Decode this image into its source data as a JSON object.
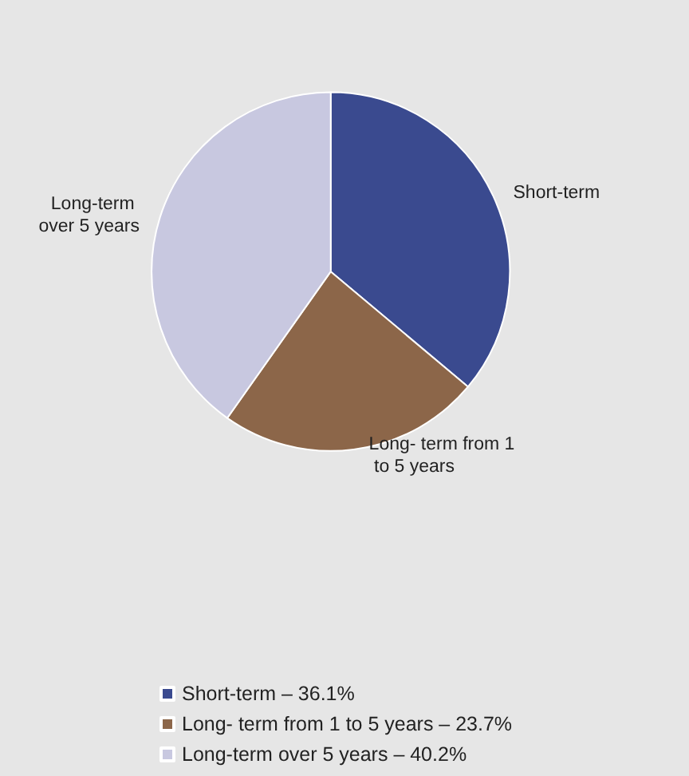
{
  "chart_data": {
    "type": "pie",
    "categories": [
      "Short-term",
      "Long- term from 1 to 5 years",
      "Long-term over 5 years"
    ],
    "values": [
      36.1,
      23.7,
      40.2
    ],
    "value_labels": [
      "36.1%",
      "23.7%",
      "40.2%"
    ],
    "annotations": [
      "–"
    ],
    "colors": [
      "#3a4a8f",
      "#8c6649",
      "#c8c8e0"
    ],
    "legend": "bottom"
  }
}
